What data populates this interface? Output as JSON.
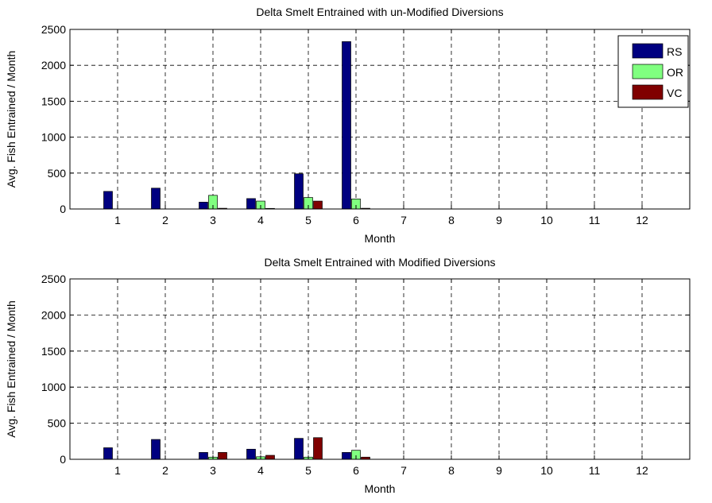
{
  "chart_data": [
    {
      "type": "bar",
      "title": "Delta Smelt Entrained with un-Modified Diversions",
      "xlabel": "Month",
      "ylabel": "Avg. Fish Entrained / Month",
      "categories": [
        "1",
        "2",
        "3",
        "4",
        "5",
        "6",
        "7",
        "8",
        "9",
        "10",
        "11",
        "12"
      ],
      "xlim": [
        0,
        13
      ],
      "ylim": [
        0,
        2500
      ],
      "yticks": [
        0,
        500,
        1000,
        1500,
        2000,
        2500
      ],
      "grid": true,
      "legend": "top-right",
      "series": [
        {
          "name": "RS",
          "color": "#000080",
          "values": [
            245,
            290,
            95,
            145,
            490,
            2330,
            0,
            0,
            0,
            0,
            0,
            0
          ]
        },
        {
          "name": "OR",
          "color": "#80ff80",
          "values": [
            0,
            0,
            190,
            110,
            160,
            140,
            0,
            0,
            0,
            0,
            0,
            0
          ]
        },
        {
          "name": "VC",
          "color": "#800000",
          "values": [
            0,
            0,
            10,
            8,
            110,
            10,
            0,
            0,
            0,
            0,
            0,
            0
          ]
        }
      ]
    },
    {
      "type": "bar",
      "title": "Delta Smelt Entrained with Modified Diversions",
      "xlabel": "Month",
      "ylabel": "Avg. Fish Entrained / Month",
      "categories": [
        "1",
        "2",
        "3",
        "4",
        "5",
        "6",
        "7",
        "8",
        "9",
        "10",
        "11",
        "12"
      ],
      "xlim": [
        0,
        13
      ],
      "ylim": [
        0,
        2500
      ],
      "yticks": [
        0,
        500,
        1000,
        1500,
        2000,
        2500
      ],
      "grid": true,
      "legend": "none",
      "series": [
        {
          "color": "#000080",
          "values": [
            160,
            275,
            95,
            140,
            290,
            95,
            0,
            0,
            0,
            0,
            0,
            0
          ]
        },
        {
          "color": "#80ff80",
          "values": [
            0,
            0,
            30,
            35,
            30,
            125,
            0,
            0,
            0,
            0,
            0,
            0
          ]
        },
        {
          "color": "#800000",
          "values": [
            0,
            0,
            95,
            55,
            300,
            30,
            0,
            0,
            0,
            0,
            0,
            0
          ]
        }
      ]
    }
  ]
}
